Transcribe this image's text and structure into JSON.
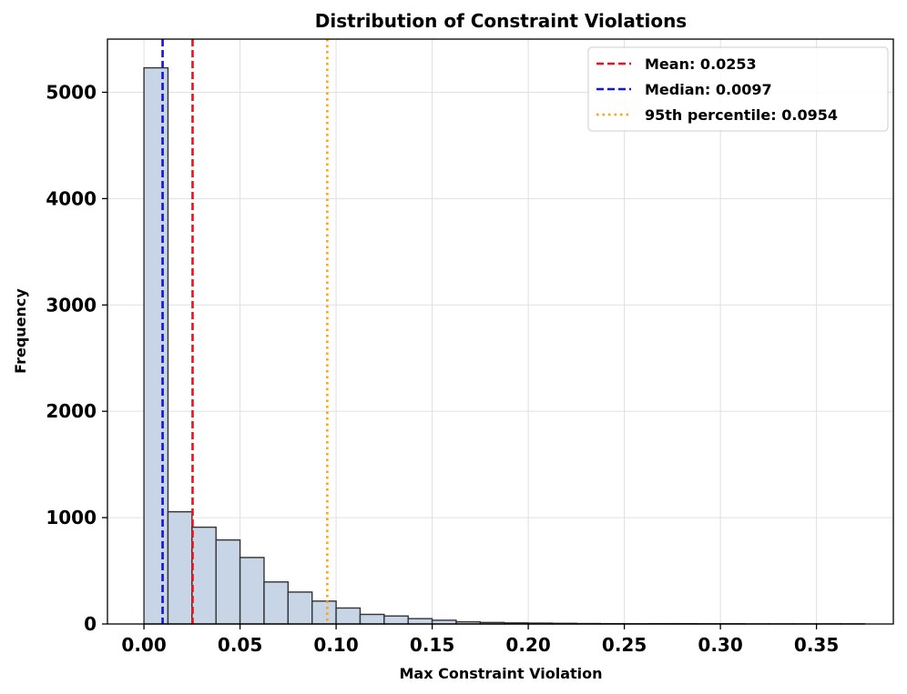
{
  "chart_data": {
    "type": "bar",
    "title": "Distribution of Constraint Violations",
    "xlabel": "Max Constraint Violation",
    "ylabel": "Frequency",
    "xlim": [
      -0.019,
      0.39
    ],
    "ylim": [
      0,
      5500
    ],
    "xticks": [
      0.0,
      0.05,
      0.1,
      0.15,
      0.2,
      0.25,
      0.3,
      0.35
    ],
    "xtick_labels": [
      "0.00",
      "0.05",
      "0.10",
      "0.15",
      "0.20",
      "0.25",
      "0.30",
      "0.35"
    ],
    "yticks": [
      0,
      1000,
      2000,
      3000,
      4000,
      5000
    ],
    "ytick_labels": [
      "0",
      "1000",
      "2000",
      "3000",
      "4000",
      "5000"
    ],
    "grid": true,
    "bin_width": 0.0125,
    "bin_start": 0.0,
    "values": [
      5230,
      1055,
      910,
      790,
      625,
      395,
      300,
      215,
      150,
      90,
      75,
      50,
      35,
      20,
      14,
      10,
      8,
      6,
      4,
      3,
      2,
      3,
      3,
      2,
      2,
      1,
      1,
      1,
      1,
      1
    ],
    "bar_color": "#c8d5e6",
    "bar_edge_color": "#333333",
    "reference_lines": [
      {
        "label": "Mean: 0.0253",
        "x": 0.0253,
        "color": "#e8141b",
        "style": "dashed"
      },
      {
        "label": "Median: 0.0097",
        "x": 0.0097,
        "color": "#1414e0",
        "style": "dashed"
      },
      {
        "label": "95th percentile: 0.0954",
        "x": 0.0954,
        "color": "#ffa500",
        "style": "dotted"
      }
    ],
    "legend_position": "top-right"
  }
}
